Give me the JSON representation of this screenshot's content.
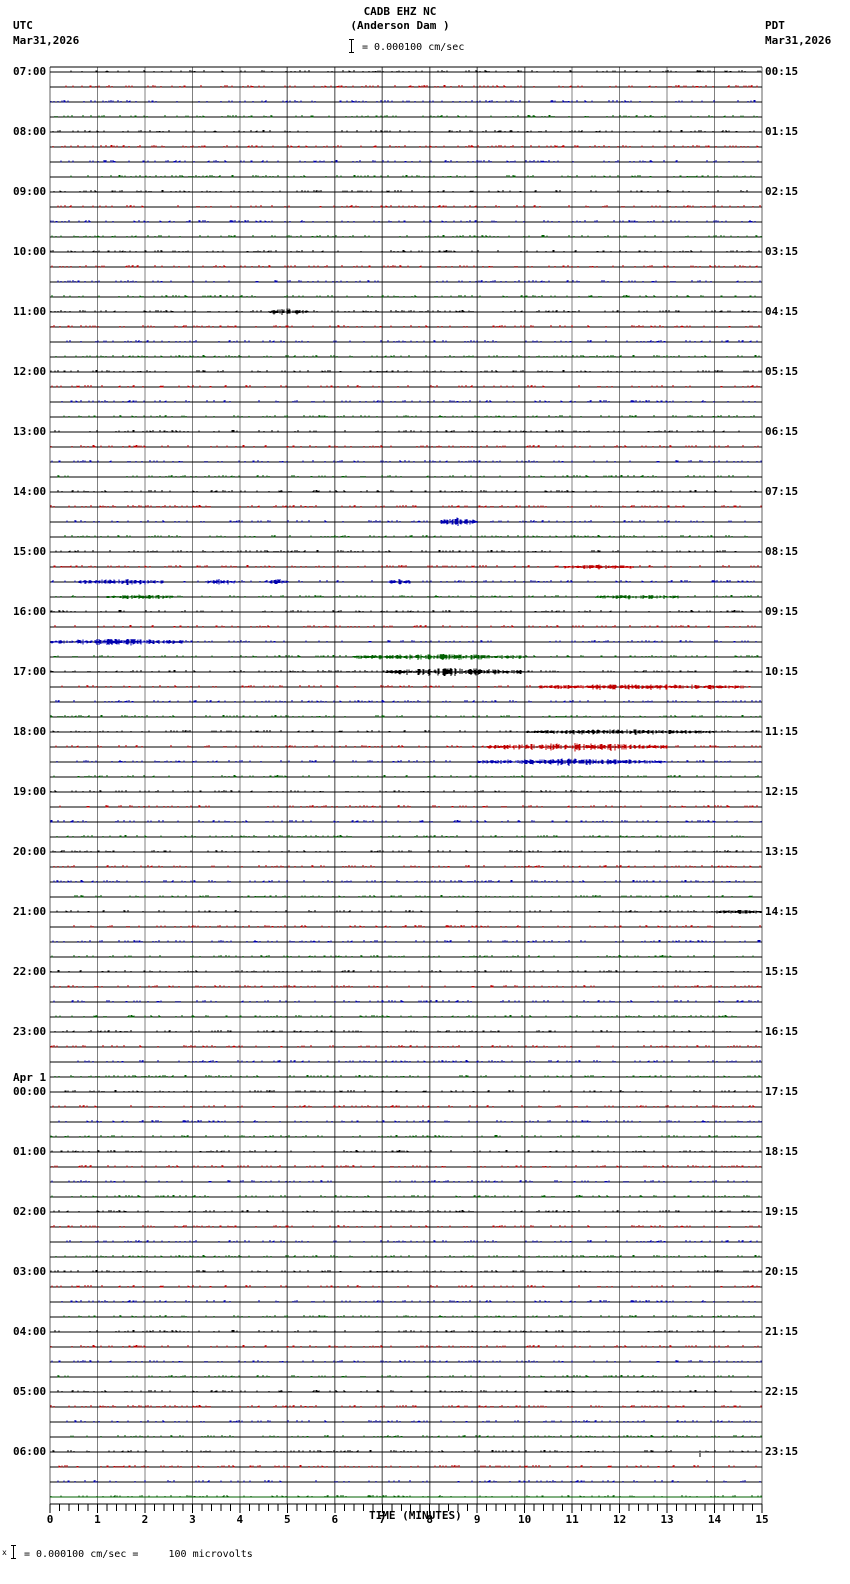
{
  "header": {
    "station": "CADB EHZ NC",
    "site": "(Anderson Dam )",
    "scale_text": "= 0.000100 cm/sec",
    "left_tz": "UTC",
    "left_date": "Mar31,2026",
    "right_tz": "PDT",
    "right_date": "Mar31,2026"
  },
  "footer": {
    "scale_text": "= 0.000100 cm/sec =     100 microvolts",
    "marker": "x"
  },
  "colors": {
    "trace_cycle": [
      "#000000",
      "#c00000",
      "#0000b0",
      "#006000"
    ],
    "grid": "#808080",
    "baseline": "#000000"
  },
  "chart_data": {
    "type": "helicorder",
    "title": "CADB EHZ NC (Anderson Dam )",
    "xlabel": "TIME (MINUTES)",
    "ylabel": "",
    "xlim": [
      0,
      15
    ],
    "x_ticks": [
      "0",
      "1",
      "2",
      "3",
      "4",
      "5",
      "6",
      "7",
      "8",
      "9",
      "10",
      "11",
      "12",
      "13",
      "14",
      "15"
    ],
    "minor_tick_interval_min": 0.2,
    "rows_per_hour": 4,
    "num_rows": 96,
    "left_labels": [
      {
        "row": 0,
        "text": "07:00"
      },
      {
        "row": 4,
        "text": "08:00"
      },
      {
        "row": 8,
        "text": "09:00"
      },
      {
        "row": 12,
        "text": "10:00"
      },
      {
        "row": 16,
        "text": "11:00"
      },
      {
        "row": 20,
        "text": "12:00"
      },
      {
        "row": 24,
        "text": "13:00"
      },
      {
        "row": 28,
        "text": "14:00"
      },
      {
        "row": 32,
        "text": "15:00"
      },
      {
        "row": 36,
        "text": "16:00"
      },
      {
        "row": 40,
        "text": "17:00"
      },
      {
        "row": 44,
        "text": "18:00"
      },
      {
        "row": 48,
        "text": "19:00"
      },
      {
        "row": 52,
        "text": "20:00"
      },
      {
        "row": 56,
        "text": "21:00"
      },
      {
        "row": 60,
        "text": "22:00"
      },
      {
        "row": 64,
        "text": "23:00"
      },
      {
        "row": 68,
        "text": "00:00",
        "date": "Apr 1"
      },
      {
        "row": 72,
        "text": "01:00"
      },
      {
        "row": 76,
        "text": "02:00"
      },
      {
        "row": 80,
        "text": "03:00"
      },
      {
        "row": 84,
        "text": "04:00"
      },
      {
        "row": 88,
        "text": "05:00"
      },
      {
        "row": 92,
        "text": "06:00"
      }
    ],
    "right_labels": [
      {
        "row": 0,
        "text": "00:15"
      },
      {
        "row": 4,
        "text": "01:15"
      },
      {
        "row": 8,
        "text": "02:15"
      },
      {
        "row": 12,
        "text": "03:15"
      },
      {
        "row": 16,
        "text": "04:15"
      },
      {
        "row": 20,
        "text": "05:15"
      },
      {
        "row": 24,
        "text": "06:15"
      },
      {
        "row": 28,
        "text": "07:15"
      },
      {
        "row": 32,
        "text": "08:15"
      },
      {
        "row": 36,
        "text": "09:15"
      },
      {
        "row": 40,
        "text": "10:15"
      },
      {
        "row": 44,
        "text": "11:15"
      },
      {
        "row": 48,
        "text": "12:15"
      },
      {
        "row": 52,
        "text": "13:15"
      },
      {
        "row": 56,
        "text": "14:15"
      },
      {
        "row": 60,
        "text": "15:15"
      },
      {
        "row": 64,
        "text": "16:15"
      },
      {
        "row": 68,
        "text": "17:15"
      },
      {
        "row": 72,
        "text": "18:15"
      },
      {
        "row": 76,
        "text": "19:15"
      },
      {
        "row": 80,
        "text": "20:15"
      },
      {
        "row": 84,
        "text": "21:15"
      },
      {
        "row": 88,
        "text": "22:15"
      },
      {
        "row": 92,
        "text": "23:15"
      }
    ],
    "events": [
      {
        "row": 16,
        "start_min": 4.6,
        "end_min": 5.4,
        "amp": 3
      },
      {
        "row": 30,
        "start_min": 8.2,
        "end_min": 9.0,
        "amp": 4
      },
      {
        "row": 34,
        "start_min": 0.6,
        "end_min": 2.4,
        "amp": 2.5
      },
      {
        "row": 34,
        "start_min": 3.3,
        "end_min": 3.9,
        "amp": 2.5
      },
      {
        "row": 34,
        "start_min": 4.6,
        "end_min": 5.0,
        "amp": 2.5
      },
      {
        "row": 34,
        "start_min": 7.1,
        "end_min": 7.6,
        "amp": 2.5
      },
      {
        "row": 35,
        "start_min": 1.2,
        "end_min": 2.6,
        "amp": 2
      },
      {
        "row": 35,
        "start_min": 11.5,
        "end_min": 13.3,
        "amp": 2
      },
      {
        "row": 33,
        "start_min": 10.8,
        "end_min": 12.3,
        "amp": 1.8
      },
      {
        "row": 38,
        "start_min": 0.0,
        "end_min": 2.8,
        "amp": 3
      },
      {
        "row": 39,
        "start_min": 6.4,
        "end_min": 10.0,
        "amp": 2.5
      },
      {
        "row": 40,
        "start_min": 7.0,
        "end_min": 10.0,
        "amp": 3.5
      },
      {
        "row": 41,
        "start_min": 10.3,
        "end_min": 14.6,
        "amp": 2.5
      },
      {
        "row": 44,
        "start_min": 10.0,
        "end_min": 14.0,
        "amp": 2.2
      },
      {
        "row": 45,
        "start_min": 9.2,
        "end_min": 13.0,
        "amp": 3.5
      },
      {
        "row": 46,
        "start_min": 9.0,
        "end_min": 13.0,
        "amp": 3
      },
      {
        "row": 56,
        "start_min": 14.0,
        "end_min": 15.0,
        "amp": 1.6
      }
    ]
  },
  "labels": {
    "x_axis_title": "TIME (MINUTES)"
  }
}
